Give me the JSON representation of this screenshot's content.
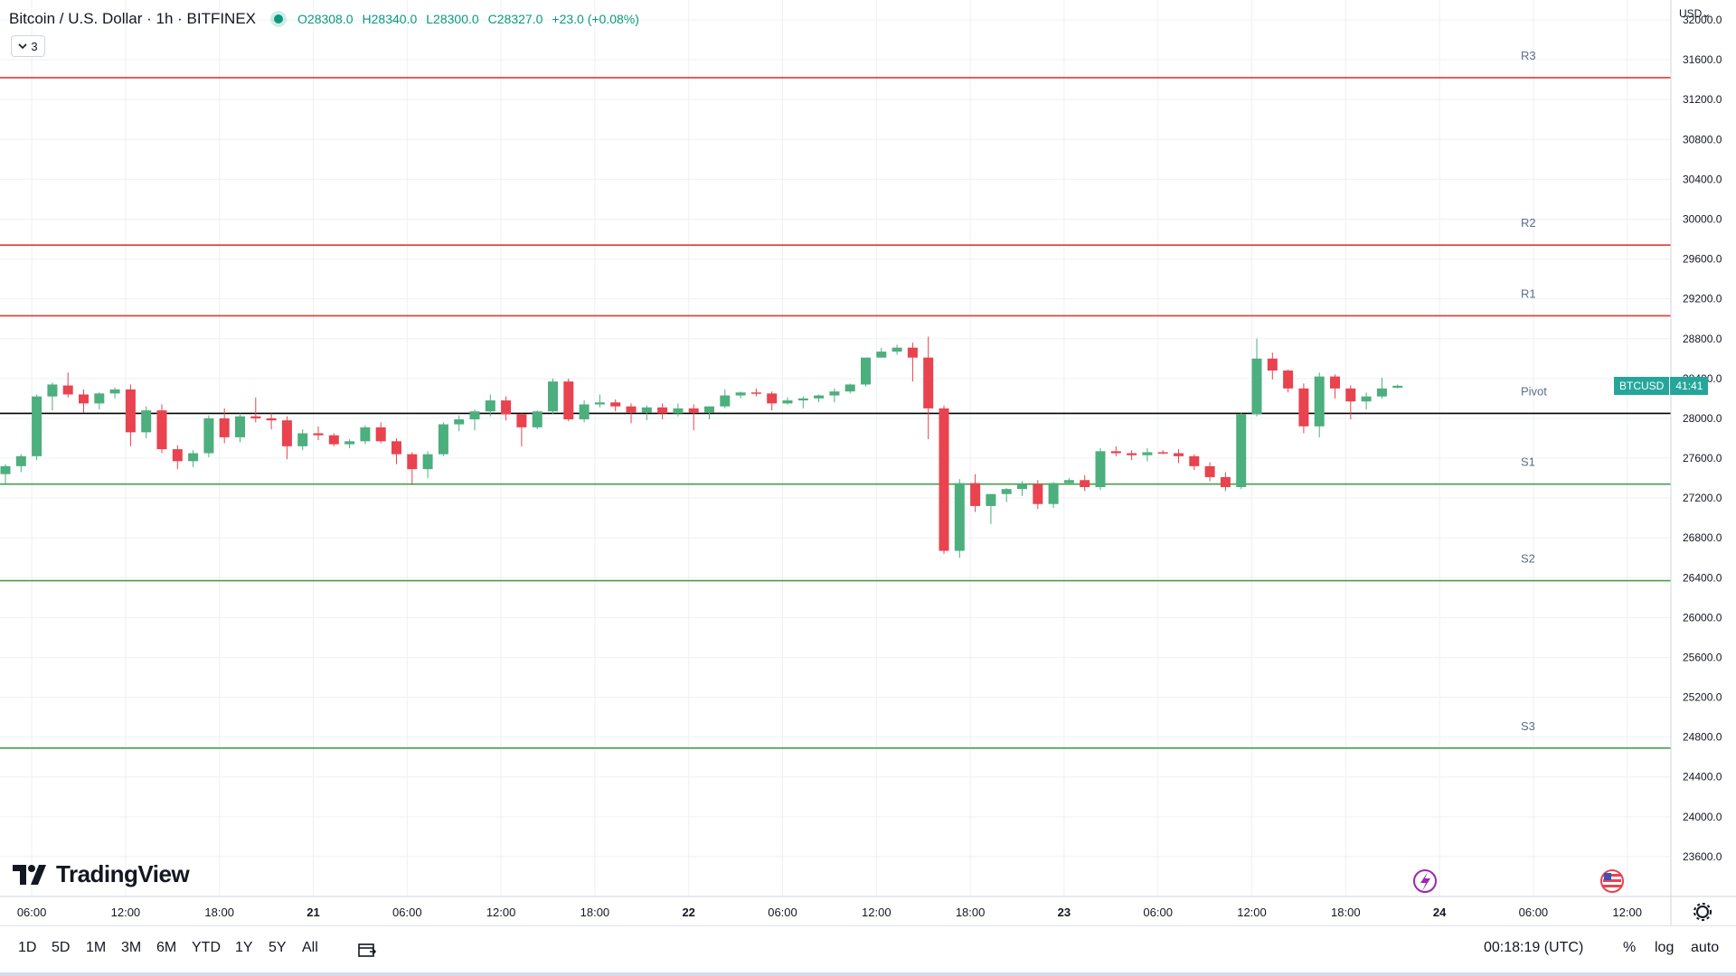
{
  "header": {
    "symbol": "Bitcoin / U.S. Dollar · 1h · BITFINEX",
    "open_label": "O",
    "open": "28308.0",
    "high_label": "H",
    "high": "28340.0",
    "low_label": "L",
    "low": "28300.0",
    "close_label": "C",
    "close": "28327.0",
    "change": "+23.0 (+0.08%)",
    "indicator_count": "3"
  },
  "currency_label": "USD",
  "logo_text": "TradingView",
  "last_price_tag": {
    "symbol": "BTCUSD",
    "countdown": "41:41"
  },
  "colors": {
    "up": "#4caf7d",
    "down": "#e8434f",
    "resistance": "#e53935",
    "support": "#43a047",
    "pivot": "#000000",
    "grid": "#eef0f3"
  },
  "ranges": [
    "1D",
    "5D",
    "1M",
    "3M",
    "6M",
    "YTD",
    "1Y",
    "5Y",
    "All"
  ],
  "time_display": "00:18:19 (UTC)",
  "toggles": {
    "percent": "%",
    "log": "log",
    "auto": "auto"
  },
  "chart_data": {
    "type": "candlestick",
    "interval": "1h",
    "y_axis": {
      "min": 23200,
      "max": 32200,
      "ticks": [
        23600,
        24000,
        24400,
        24800,
        25200,
        25600,
        26000,
        26400,
        26800,
        27200,
        27600,
        28000,
        28400,
        28800,
        29200,
        29600,
        30000,
        30400,
        30800,
        31200,
        31600,
        32000
      ]
    },
    "y_tick_labels": [
      "23600.0",
      "24000.0",
      "24400.0",
      "24800.0",
      "25200.0",
      "25600.0",
      "26000.0",
      "26400.0",
      "26800.0",
      "27200.0",
      "27600.0",
      "28000.0",
      "28400.0",
      "28800.0",
      "29200.0",
      "29600.0",
      "30000.0",
      "30400.0",
      "30800.0",
      "31200.0",
      "31600.0",
      "32000.0"
    ],
    "x_axis": {
      "start_hour": 4,
      "labels": [
        {
          "hour": 6,
          "text": "06:00"
        },
        {
          "hour": 12,
          "text": "12:00"
        },
        {
          "hour": 18,
          "text": "18:00"
        },
        {
          "hour": 24,
          "text": "21",
          "bold": true
        },
        {
          "hour": 30,
          "text": "06:00"
        },
        {
          "hour": 36,
          "text": "12:00"
        },
        {
          "hour": 42,
          "text": "18:00"
        },
        {
          "hour": 48,
          "text": "22",
          "bold": true
        },
        {
          "hour": 54,
          "text": "06:00"
        },
        {
          "hour": 60,
          "text": "12:00"
        },
        {
          "hour": 66,
          "text": "18:00"
        },
        {
          "hour": 72,
          "text": "23",
          "bold": true
        },
        {
          "hour": 78,
          "text": "06:00"
        },
        {
          "hour": 84,
          "text": "12:00"
        },
        {
          "hour": 90,
          "text": "18:00"
        },
        {
          "hour": 96,
          "text": "24",
          "bold": true
        },
        {
          "hour": 102,
          "text": "06:00"
        },
        {
          "hour": 108,
          "text": "12:00"
        }
      ]
    },
    "levels": [
      {
        "name": "R3",
        "value": 31420,
        "kind": "resistance"
      },
      {
        "name": "R2",
        "value": 29740,
        "kind": "resistance"
      },
      {
        "name": "R1",
        "value": 29030,
        "kind": "resistance"
      },
      {
        "name": "Pivot",
        "value": 28050,
        "kind": "pivot"
      },
      {
        "name": "S1",
        "value": 27340,
        "kind": "support"
      },
      {
        "name": "S2",
        "value": 26370,
        "kind": "support"
      },
      {
        "name": "S3",
        "value": 24690,
        "kind": "support"
      }
    ],
    "candles": [
      [
        27440,
        27540,
        27330,
        27520
      ],
      [
        27520,
        27640,
        27460,
        27620
      ],
      [
        27620,
        28240,
        27580,
        28220
      ],
      [
        28220,
        28360,
        28080,
        28340
      ],
      [
        28330,
        28460,
        28210,
        28240
      ],
      [
        28240,
        28290,
        28060,
        28150
      ],
      [
        28150,
        28260,
        28090,
        28250
      ],
      [
        28250,
        28310,
        28200,
        28290
      ],
      [
        28290,
        28340,
        27720,
        27860
      ],
      [
        27860,
        28120,
        27800,
        28080
      ],
      [
        28080,
        28140,
        27650,
        27690
      ],
      [
        27690,
        27730,
        27490,
        27570
      ],
      [
        27570,
        27680,
        27510,
        27650
      ],
      [
        27650,
        28030,
        27610,
        28000
      ],
      [
        28000,
        28100,
        27750,
        27810
      ],
      [
        27810,
        28050,
        27760,
        28020
      ],
      [
        28020,
        28210,
        27960,
        28000
      ],
      [
        28000,
        28050,
        27890,
        27980
      ],
      [
        27980,
        28020,
        27590,
        27720
      ],
      [
        27720,
        27890,
        27680,
        27850
      ],
      [
        27850,
        27920,
        27780,
        27830
      ],
      [
        27830,
        27850,
        27720,
        27740
      ],
      [
        27740,
        27790,
        27700,
        27770
      ],
      [
        27770,
        27930,
        27740,
        27910
      ],
      [
        27910,
        27960,
        27750,
        27770
      ],
      [
        27770,
        27800,
        27540,
        27640
      ],
      [
        27640,
        27660,
        27330,
        27490
      ],
      [
        27490,
        27670,
        27400,
        27640
      ],
      [
        27640,
        27960,
        27620,
        27940
      ],
      [
        27940,
        28030,
        27870,
        27990
      ],
      [
        27990,
        28090,
        27880,
        28070
      ],
      [
        28070,
        28240,
        28020,
        28180
      ],
      [
        28180,
        28220,
        27980,
        28040
      ],
      [
        28040,
        28050,
        27720,
        27910
      ],
      [
        27910,
        28080,
        27890,
        28070
      ],
      [
        28070,
        28400,
        28040,
        28370
      ],
      [
        28370,
        28400,
        27970,
        27990
      ],
      [
        27990,
        28180,
        27960,
        28140
      ],
      [
        28140,
        28240,
        28110,
        28160
      ],
      [
        28160,
        28190,
        28070,
        28120
      ],
      [
        28120,
        28150,
        27950,
        28060
      ],
      [
        28060,
        28130,
        27980,
        28110
      ],
      [
        28110,
        28150,
        27990,
        28050
      ],
      [
        28050,
        28150,
        28020,
        28100
      ],
      [
        28100,
        28140,
        27880,
        28060
      ],
      [
        28060,
        28120,
        27990,
        28120
      ],
      [
        28120,
        28290,
        28100,
        28230
      ],
      [
        28230,
        28270,
        28200,
        28260
      ],
      [
        28260,
        28300,
        28220,
        28250
      ],
      [
        28250,
        28270,
        28080,
        28150
      ],
      [
        28150,
        28210,
        28140,
        28180
      ],
      [
        28180,
        28220,
        28100,
        28200
      ],
      [
        28200,
        28240,
        28160,
        28230
      ],
      [
        28230,
        28300,
        28160,
        28270
      ],
      [
        28270,
        28350,
        28250,
        28340
      ],
      [
        28340,
        28600,
        28320,
        28610
      ],
      [
        28610,
        28710,
        28620,
        28670
      ],
      [
        28670,
        28740,
        28640,
        28710
      ],
      [
        28710,
        28760,
        28370,
        28610
      ],
      [
        28610,
        28820,
        27790,
        28100
      ],
      [
        28100,
        28130,
        26640,
        26670
      ],
      [
        26670,
        27390,
        26600,
        27350
      ],
      [
        27350,
        27440,
        27060,
        27120
      ],
      [
        27120,
        27240,
        26940,
        27240
      ],
      [
        27240,
        27300,
        27160,
        27290
      ],
      [
        27290,
        27370,
        27220,
        27340
      ],
      [
        27340,
        27380,
        27090,
        27140
      ],
      [
        27140,
        27360,
        27100,
        27350
      ],
      [
        27350,
        27400,
        27330,
        27380
      ],
      [
        27380,
        27430,
        27270,
        27310
      ],
      [
        27310,
        27700,
        27280,
        27670
      ],
      [
        27670,
        27720,
        27620,
        27650
      ],
      [
        27650,
        27680,
        27580,
        27630
      ],
      [
        27630,
        27700,
        27570,
        27660
      ],
      [
        27660,
        27680,
        27640,
        27650
      ],
      [
        27650,
        27690,
        27550,
        27620
      ],
      [
        27620,
        27640,
        27480,
        27520
      ],
      [
        27520,
        27560,
        27370,
        27410
      ],
      [
        27410,
        27460,
        27270,
        27310
      ],
      [
        27310,
        28060,
        27290,
        28040
      ],
      [
        28040,
        28800,
        28020,
        28600
      ],
      [
        28600,
        28660,
        28390,
        28480
      ],
      [
        28480,
        28490,
        28260,
        28300
      ],
      [
        28300,
        28350,
        27850,
        27920
      ],
      [
        27920,
        28460,
        27810,
        28420
      ],
      [
        28420,
        28440,
        28200,
        28300
      ],
      [
        28300,
        28330,
        27990,
        28170
      ],
      [
        28170,
        28260,
        28090,
        28220
      ],
      [
        28220,
        28410,
        28200,
        28300
      ],
      [
        28308,
        28340,
        28300,
        28327
      ]
    ]
  }
}
